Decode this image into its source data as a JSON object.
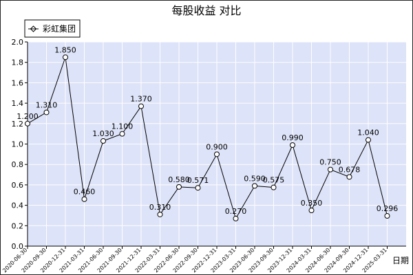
{
  "chart_data": {
    "type": "line",
    "title": "每股收益  对比",
    "xlabel": "日期",
    "ylabel": "",
    "ylim": [
      0.0,
      2.0
    ],
    "yticks": [
      "0.0",
      "0.2",
      "0.4",
      "0.6",
      "0.8",
      "1.0",
      "1.2",
      "1.4",
      "1.6",
      "1.8",
      "2.0"
    ],
    "legend_position": "top-left",
    "grid": true,
    "colors": {
      "plot_bg": "#dde3f8",
      "grid": "#ffffff",
      "line": "#000000",
      "text": "#000000",
      "frame": "#222222"
    },
    "categories": [
      "2020-06-30",
      "2020-09-30",
      "2020-12-31",
      "2021-03-31",
      "2021-06-30",
      "2021-09-30",
      "2021-12-31",
      "2022-03-31",
      "2022-06-30",
      "2022-09-30",
      "2022-12-31",
      "2023-03-31",
      "2023-06-30",
      "2023-09-30",
      "2023-12-31",
      "2024-03-31",
      "2024-06-30",
      "2024-09-30",
      "2024-12-31",
      "2025-03-31"
    ],
    "series": [
      {
        "name": "彩虹集团",
        "values": [
          1.2,
          1.31,
          1.85,
          0.46,
          1.03,
          1.1,
          1.37,
          0.31,
          0.58,
          0.571,
          0.9,
          0.27,
          0.59,
          0.575,
          0.99,
          0.35,
          0.75,
          0.678,
          1.04,
          0.296
        ],
        "labels": [
          "1.200",
          "1.310",
          "1.850",
          "0.460",
          "1.030",
          "1.100",
          "1.370",
          "0.310",
          "0.580",
          "0.571",
          "0.900",
          "0.270",
          "0.590",
          "0.575",
          "0.990",
          "0.350",
          "0.750",
          "0.678",
          "1.040",
          "0.296"
        ]
      }
    ]
  }
}
